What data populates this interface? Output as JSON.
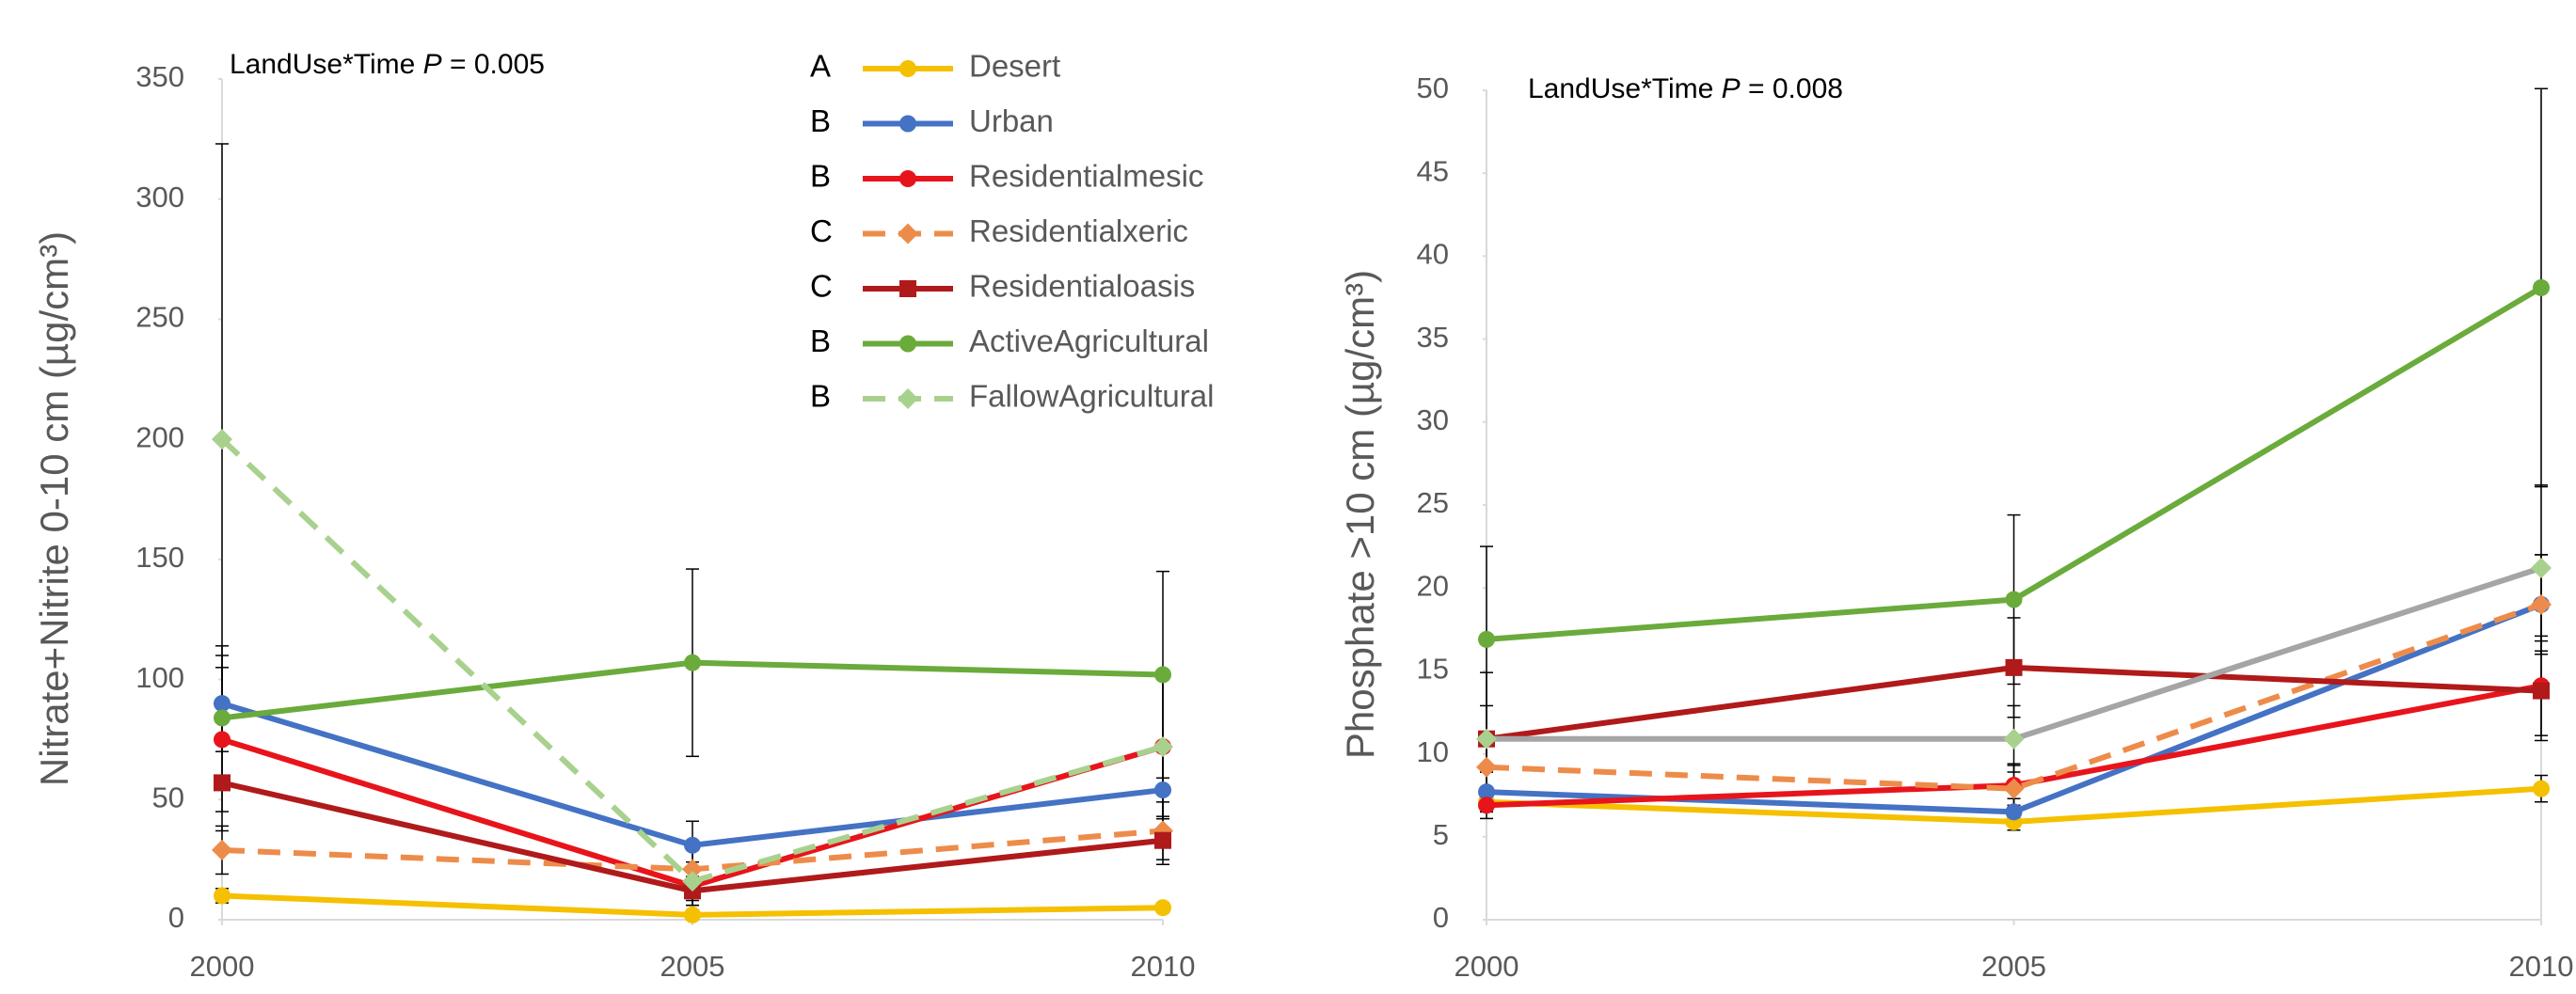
{
  "chart_data": [
    {
      "type": "line",
      "annotation": {
        "prefix": "LandUse*Time ",
        "italic": "P",
        "suffix": " = 0.005"
      },
      "y_label": "Nitrate+Nitrite 0-10 cm (µg/cm³)",
      "x": [
        2000,
        2005,
        2010
      ],
      "xlim": [
        2000,
        2010
      ],
      "xticks": [
        2000,
        2005,
        2010
      ],
      "ylim": [
        0,
        350
      ],
      "yticks": [
        0,
        50,
        100,
        150,
        200,
        250,
        300,
        350
      ],
      "legend": "top-right",
      "series": [
        {
          "name": "Desert",
          "group": "A",
          "color": "#f5c000",
          "marker": "circle",
          "values": [
            10,
            2,
            5
          ],
          "errors": [
            3,
            2,
            2
          ]
        },
        {
          "name": "Urban",
          "group": "B",
          "color": "#4472c4",
          "marker": "circle",
          "values": [
            90,
            31,
            54
          ],
          "errors": [
            20,
            10,
            18
          ]
        },
        {
          "name": "Residentialmesic",
          "group": "B",
          "color": "#e8141b",
          "marker": "circle",
          "values": [
            75,
            14,
            72
          ],
          "errors": [
            30,
            8,
            30
          ]
        },
        {
          "name": "Residentialxeric",
          "group": "C",
          "color": "#ed8c4a",
          "marker": "diamond",
          "dash": true,
          "values": [
            29,
            21,
            37
          ],
          "errors": [
            10,
            8,
            12
          ]
        },
        {
          "name": "Residentialoasis",
          "group": "C",
          "color": "#b01a1a",
          "marker": "square",
          "values": [
            57,
            12,
            33
          ],
          "errors": [
            20,
            6,
            10
          ]
        },
        {
          "name": "ActiveAgricultural",
          "group": "B",
          "color": "#6aab3c",
          "marker": "circle",
          "values": [
            84,
            107,
            102
          ],
          "errors": [
            30,
            39,
            43
          ]
        },
        {
          "name": "FallowAgricultural",
          "group": "B",
          "color": "#a9d18e",
          "marker": "diamond",
          "dash": true,
          "values": [
            200,
            16,
            72
          ],
          "errors": [
            123,
            8,
            30
          ]
        }
      ]
    },
    {
      "type": "line",
      "annotation": {
        "prefix": "LandUse*Time  ",
        "italic": "P",
        "suffix": " = 0.008"
      },
      "y_label": "Phosphate >10 cm (µg/cm³)",
      "x": [
        2000,
        2005,
        2010
      ],
      "xlim": [
        2000,
        2010
      ],
      "xticks": [
        2000,
        2005,
        2010
      ],
      "ylim": [
        0,
        50
      ],
      "yticks": [
        0,
        5,
        10,
        15,
        20,
        25,
        30,
        35,
        40,
        45,
        50
      ],
      "series": [
        {
          "color": "#f5c000",
          "marker": "circle",
          "values": [
            7.1,
            5.9,
            7.9
          ],
          "errors": [
            0.6,
            0.5,
            0.8
          ]
        },
        {
          "color": "#4472c4",
          "marker": "circle",
          "values": [
            7.7,
            6.5,
            19.0
          ],
          "errors": [
            1.2,
            0.8,
            3
          ]
        },
        {
          "color": "#e8141b",
          "marker": "circle",
          "values": [
            6.9,
            8.1,
            14.1
          ],
          "errors": [
            0.8,
            1.2,
            3
          ]
        },
        {
          "color": "#ed8c4a",
          "marker": "diamond",
          "dash": true,
          "values": [
            9.2,
            7.9,
            19.0
          ],
          "errors": [
            1.5,
            1.5,
            3
          ]
        },
        {
          "color": "#b01a1a",
          "marker": "square",
          "values": [
            10.9,
            15.2,
            13.8
          ],
          "errors": [
            4,
            3,
            3
          ]
        },
        {
          "color": "#6aab3c",
          "marker": "circle",
          "values": [
            16.9,
            19.3,
            38.1
          ],
          "errors": [
            5.6,
            5.1,
            12
          ]
        },
        {
          "color": "#a5a5a5",
          "marker_color": "#a9d18e",
          "marker": "diamond",
          "values": [
            10.9,
            10.9,
            21.2
          ],
          "errors": [
            2,
            2,
            5
          ]
        }
      ]
    }
  ]
}
